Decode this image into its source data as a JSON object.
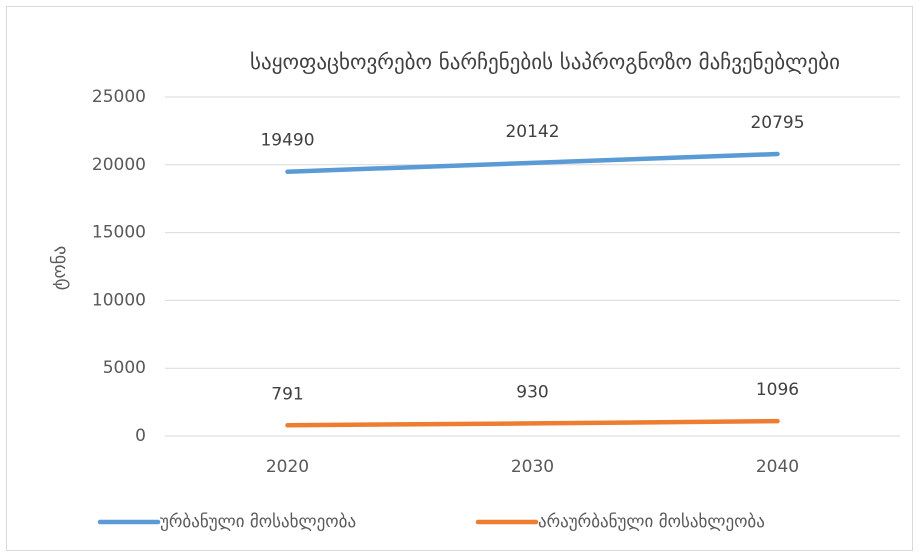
{
  "chart_data": {
    "type": "line",
    "title": "საყოფაცხოვრებო ნარჩენების საპროგნოზო მაჩვენებლები",
    "y_label": "ტონა",
    "categories": [
      "2020",
      "2030",
      "2040"
    ],
    "series": [
      {
        "name": "ურბანული მოსახლეობა",
        "color": "#5b9bd5",
        "values": [
          19490,
          20142,
          20795
        ]
      },
      {
        "name": "არაურბანული მოსახლეობა",
        "color": "#ed7d31",
        "values": [
          791,
          930,
          1096
        ]
      }
    ],
    "ylim": [
      0,
      25000
    ],
    "yticks": [
      0,
      5000,
      10000,
      15000,
      20000,
      25000
    ],
    "grid": true,
    "legend": "bottom",
    "data_labels": true
  }
}
